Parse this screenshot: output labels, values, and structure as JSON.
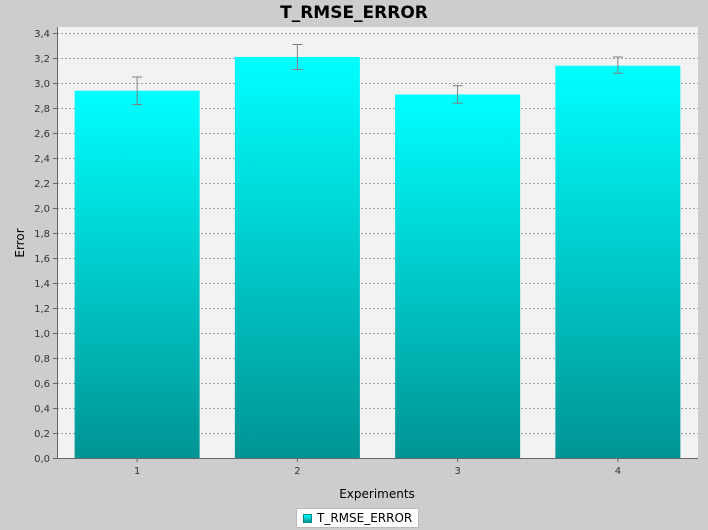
{
  "chart_data": {
    "type": "bar",
    "title": "T_RMSE_ERROR",
    "xlabel": "Experiments",
    "ylabel": "Error",
    "categories": [
      "1",
      "2",
      "3",
      "4"
    ],
    "series": [
      {
        "name": "T_RMSE_ERROR",
        "values": [
          2.94,
          3.21,
          2.91,
          3.14
        ],
        "error_low": [
          2.83,
          3.11,
          2.84,
          3.08
        ],
        "error_high": [
          3.05,
          3.31,
          2.98,
          3.21
        ]
      }
    ],
    "ylim": [
      0,
      3.45
    ],
    "yticks": [
      "0,0",
      "0,2",
      "0,4",
      "0,6",
      "0,8",
      "1,0",
      "1,2",
      "1,4",
      "1,6",
      "1,8",
      "2,0",
      "2,2",
      "2,4",
      "2,6",
      "2,8",
      "3,0",
      "3,2",
      "3,4"
    ],
    "ytick_values": [
      0,
      0.2,
      0.4,
      0.6,
      0.8,
      1.0,
      1.2,
      1.4,
      1.6,
      1.8,
      2.0,
      2.2,
      2.4,
      2.6,
      2.8,
      3.0,
      3.2,
      3.4
    ],
    "grid": true,
    "legend": "bottom-center",
    "colors": {
      "bar_top": "#00ffff",
      "bar_bottom": "#009494",
      "plot_background": "#f2f2f2",
      "page_background": "#cdcdcd",
      "grid": "#888888",
      "error_bar": "#808080"
    }
  }
}
